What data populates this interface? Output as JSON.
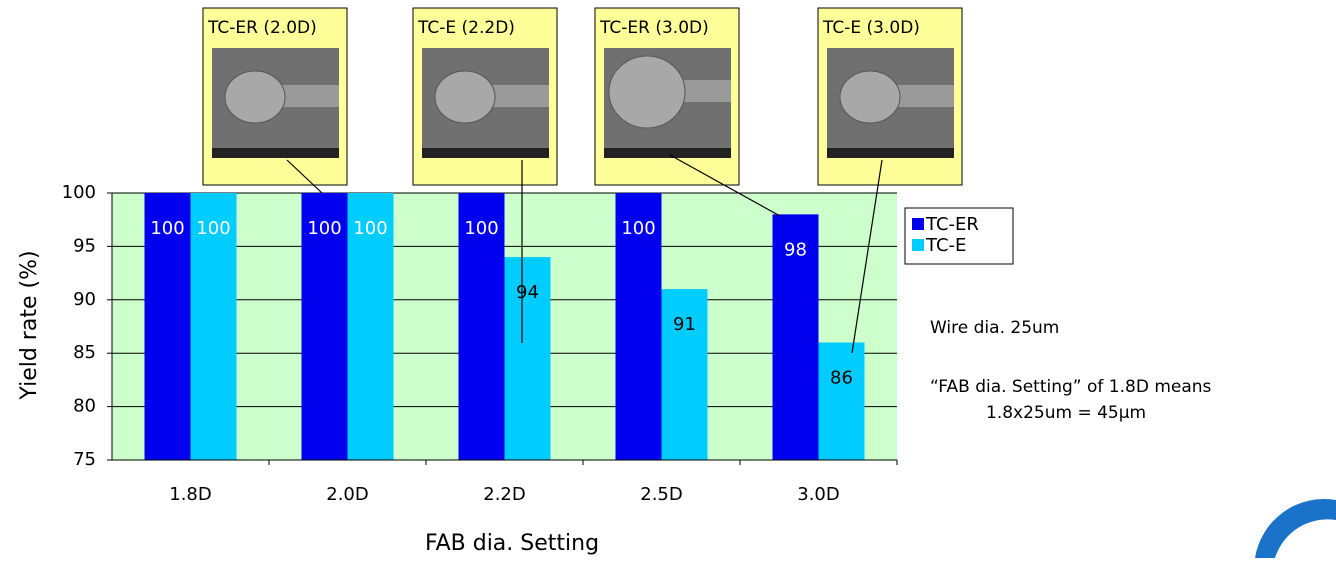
{
  "chart_data": {
    "type": "bar",
    "x_label": "FAB dia. Setting",
    "y_label": "Yield rate (%)",
    "categories": [
      "1.8D",
      "2.0D",
      "2.2D",
      "2.5D",
      "3.0D"
    ],
    "series": [
      {
        "name": "TC-ER",
        "color": "#0000ee",
        "values": [
          100,
          100,
          100,
          100,
          98
        ]
      },
      {
        "name": "TC-E",
        "color": "#00ccff",
        "values": [
          100,
          100,
          94,
          91,
          86
        ]
      }
    ],
    "ylim": [
      75,
      100
    ],
    "yticks": [
      75,
      80,
      85,
      90,
      95,
      100
    ],
    "grid": true,
    "legend": "right",
    "callouts": [
      "TC-ER (2.0D)",
      "TC-E (2.2D)",
      "TC-ER (3.0D)",
      "TC-E (3.0D)"
    ],
    "notes": [
      "Wire dia.  25um",
      "“FAB dia. Setting” of 1.8D means",
      "1.8x25um = 45μm"
    ]
  }
}
